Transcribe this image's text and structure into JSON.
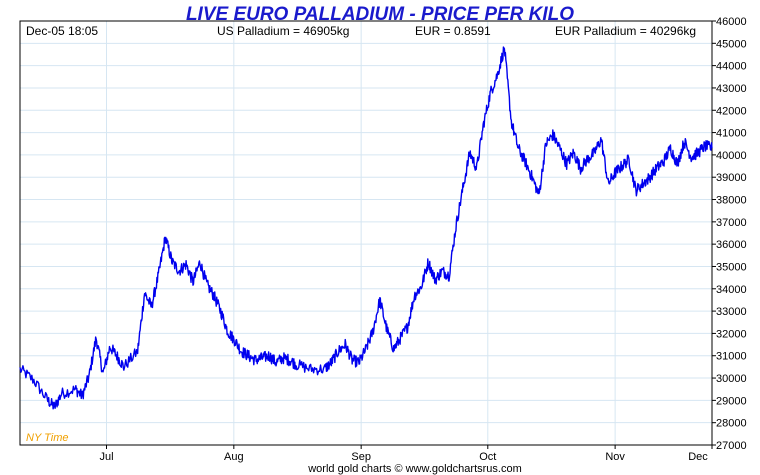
{
  "header": {
    "title": "LIVE EURO PALLADIUM - PRICE PER KILO",
    "timestamp": "Dec-05  18:05",
    "us_price": "US Palladium = 46905kg",
    "fx_rate": "EUR = 0.8591",
    "eur_price": "EUR Palladium = 40296kg"
  },
  "timezone_label": "NY Time",
  "footer": {
    "credit": "world gold charts © www.goldchartsrus.com"
  },
  "colors": {
    "series": "#0000ee",
    "title": "#1a1acc",
    "timezone": "#f0a000",
    "grid": "#d6e6f2"
  },
  "chart_data": {
    "type": "line",
    "title": "LIVE EURO PALLADIUM - PRICE PER KILO",
    "xlabel": "",
    "ylabel": "",
    "y_axis_side": "right",
    "ylim": [
      27000,
      46000
    ],
    "y_ticks": [
      27000,
      28000,
      29000,
      30000,
      31000,
      32000,
      33000,
      34000,
      35000,
      36000,
      37000,
      38000,
      39000,
      40000,
      41000,
      42000,
      43000,
      44000,
      45000,
      46000
    ],
    "x_ticks": [
      "Jul",
      "Aug",
      "Sep",
      "Oct",
      "Nov",
      "Dec"
    ],
    "x_tick_pos": [
      0.125,
      0.309,
      0.493,
      0.676,
      0.86,
      1.0
    ],
    "grid": true,
    "series": [
      {
        "x": [
          0.0,
          0.02,
          0.04,
          0.05,
          0.06,
          0.08,
          0.09,
          0.1,
          0.11,
          0.12,
          0.13,
          0.14,
          0.15,
          0.17,
          0.18,
          0.19,
          0.2,
          0.21,
          0.22,
          0.23,
          0.24,
          0.25,
          0.26,
          0.27,
          0.28,
          0.29,
          0.3,
          0.31,
          0.32,
          0.33,
          0.34,
          0.35,
          0.36,
          0.37,
          0.38,
          0.39,
          0.4,
          0.42,
          0.44,
          0.45,
          0.46,
          0.47,
          0.48,
          0.49,
          0.5,
          0.51,
          0.52,
          0.53,
          0.54,
          0.55,
          0.56,
          0.57,
          0.58,
          0.59,
          0.6,
          0.61,
          0.62,
          0.63,
          0.64,
          0.65,
          0.66,
          0.67,
          0.68,
          0.69,
          0.7,
          0.71,
          0.72,
          0.73,
          0.74,
          0.75,
          0.76,
          0.77,
          0.78,
          0.79,
          0.8,
          0.81,
          0.82,
          0.83,
          0.84,
          0.85,
          0.86,
          0.87,
          0.88,
          0.89,
          0.9,
          0.91,
          0.92,
          0.93,
          0.94,
          0.95,
          0.96,
          0.97,
          0.98,
          0.99,
          1.0
        ],
        "values": [
          30400,
          29900,
          29000,
          28700,
          29300,
          29500,
          29200,
          30100,
          31800,
          30200,
          31400,
          31000,
          30500,
          31200,
          33800,
          33200,
          34600,
          36300,
          35200,
          34800,
          35100,
          34300,
          35200,
          34200,
          33700,
          33000,
          32100,
          31700,
          31200,
          31000,
          30800,
          30900,
          31000,
          30700,
          30900,
          30800,
          30600,
          30400,
          30400,
          30700,
          31200,
          31500,
          30800,
          30700,
          31300,
          32100,
          33500,
          32200,
          31300,
          31800,
          32300,
          33700,
          34100,
          35200,
          34400,
          34800,
          34600,
          36800,
          38500,
          40100,
          39400,
          41400,
          42800,
          43600,
          44800,
          41500,
          40300,
          39700,
          39000,
          38200,
          40500,
          40900,
          40300,
          39600,
          40100,
          39400,
          39800,
          40100,
          40700,
          38700,
          39200,
          39500,
          39800,
          38400,
          38700,
          39000,
          39400,
          39700,
          40300,
          39600,
          40600,
          39900,
          40100,
          40400,
          40300
        ]
      }
    ]
  }
}
